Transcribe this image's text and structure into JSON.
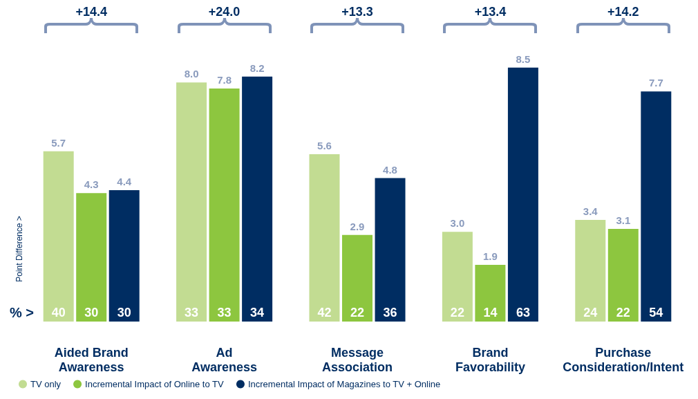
{
  "chart_data": {
    "type": "bar",
    "ylabel": "Point Difference >",
    "categories": [
      "Aided Brand\nAwareness",
      "Ad\nAwareness",
      "Message\nAssociation",
      "Brand\nFavorability",
      "Purchase\nConsideration/Intent"
    ],
    "series": [
      {
        "name": "TV only",
        "color": "#c2dc92",
        "values": [
          5.7,
          8.0,
          5.6,
          3.0,
          3.4
        ],
        "value_labels": [
          "5.7",
          "8.0",
          "5.6",
          "3.0",
          "3.4"
        ]
      },
      {
        "name": "Incremental Impact of Online to TV",
        "color": "#8dc63f",
        "values": [
          4.3,
          7.8,
          2.9,
          1.9,
          3.1
        ],
        "value_labels": [
          "4.3",
          "7.8",
          "2.9",
          "1.9",
          "3.1"
        ]
      },
      {
        "name": "Incremental Impact of Magazines to TV + Online",
        "color": "#002d62",
        "values": [
          4.4,
          8.2,
          4.8,
          8.5,
          7.7
        ],
        "value_labels": [
          "4.4",
          "8.2",
          "4.8",
          "8.5",
          "7.7"
        ]
      }
    ],
    "legend": "bottom left",
    "annotations": [
      "% >",
      "+14.4",
      "+24.0",
      "+13.3",
      "+13.4",
      "+14.2",
      "40",
      "30",
      "30",
      "33",
      "33",
      "34",
      "42",
      "22",
      "36",
      "22",
      "14",
      "63",
      "24",
      "22",
      "54"
    ]
  }
}
